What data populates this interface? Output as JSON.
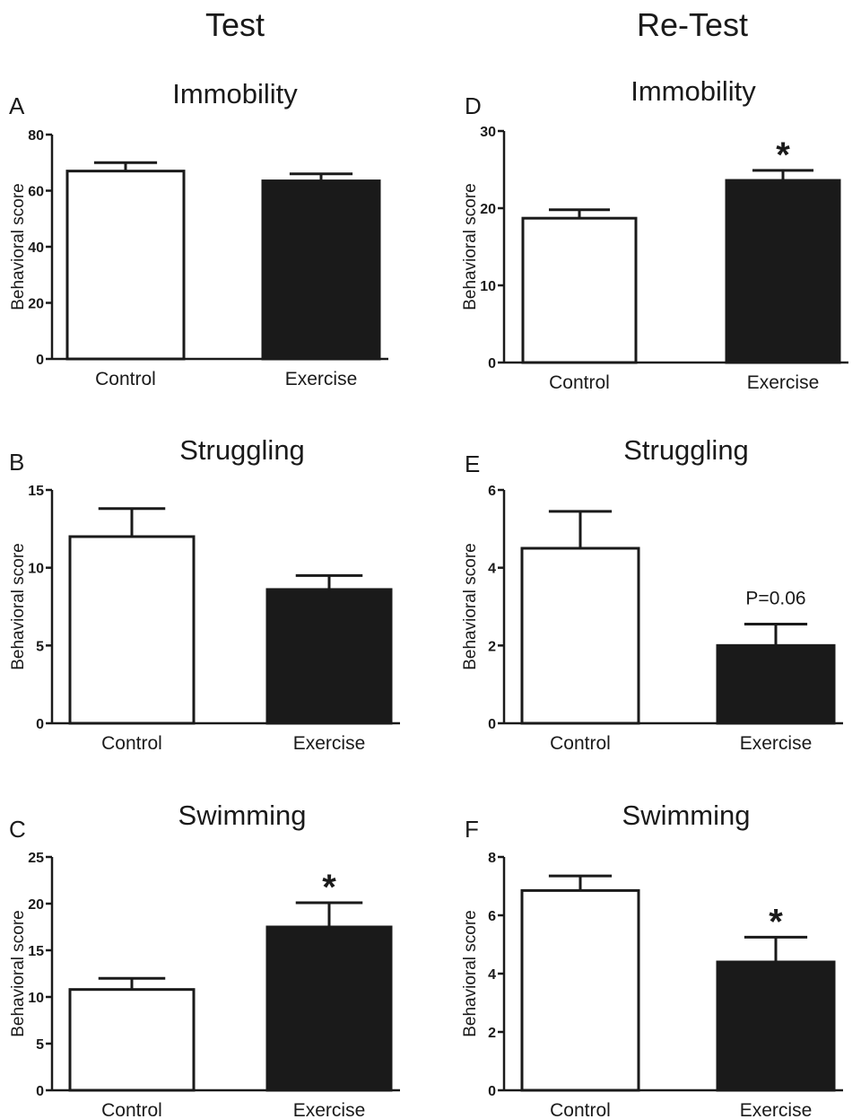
{
  "columns": [
    "Test",
    "Re-Test"
  ],
  "colors": {
    "control": "#ffffff",
    "exercise": "#1a1a1a",
    "axis": "#1a1a1a"
  },
  "chart_data": [
    {
      "panel": "A",
      "column": "Test",
      "type": "bar",
      "title": "Immobility",
      "ylabel": "Behavioral score",
      "categories": [
        "Control",
        "Exercise"
      ],
      "values": [
        67,
        63.5
      ],
      "errors": [
        3,
        2.5
      ],
      "ylim": [
        0,
        80
      ],
      "yticks": [
        0,
        20,
        40,
        60,
        80
      ],
      "annotations": [
        "",
        ""
      ],
      "grid": false
    },
    {
      "panel": "B",
      "column": "Test",
      "type": "bar",
      "title": "Struggling",
      "ylabel": "Behavioral score",
      "categories": [
        "Control",
        "Exercise"
      ],
      "values": [
        12,
        8.6
      ],
      "errors": [
        1.8,
        0.9
      ],
      "ylim": [
        0,
        15
      ],
      "yticks": [
        0,
        5,
        10,
        15
      ],
      "annotations": [
        "",
        ""
      ],
      "grid": false
    },
    {
      "panel": "C",
      "column": "Test",
      "type": "bar",
      "title": "Swimming",
      "ylabel": "Behavioral score",
      "categories": [
        "Control",
        "Exercise"
      ],
      "values": [
        10.8,
        17.5
      ],
      "errors": [
        1.2,
        2.6
      ],
      "ylim": [
        0,
        25
      ],
      "yticks": [
        0,
        5,
        10,
        15,
        20,
        25
      ],
      "annotations": [
        "",
        "*"
      ],
      "grid": false
    },
    {
      "panel": "D",
      "column": "Re-Test",
      "type": "bar",
      "title": "Immobility",
      "ylabel": "Behavioral score",
      "categories": [
        "Control",
        "Exercise"
      ],
      "values": [
        18.7,
        23.6
      ],
      "errors": [
        1.1,
        1.3
      ],
      "ylim": [
        0,
        30
      ],
      "yticks": [
        0,
        10,
        20,
        30
      ],
      "annotations": [
        "",
        "*"
      ],
      "grid": false
    },
    {
      "panel": "E",
      "column": "Re-Test",
      "type": "bar",
      "title": "Struggling",
      "ylabel": "Behavioral score",
      "categories": [
        "Control",
        "Exercise"
      ],
      "values": [
        4.5,
        2.0
      ],
      "errors": [
        0.95,
        0.55
      ],
      "ylim": [
        0,
        6
      ],
      "yticks": [
        0,
        2,
        4,
        6
      ],
      "annotations": [
        "",
        "P=0.06"
      ],
      "grid": false
    },
    {
      "panel": "F",
      "column": "Re-Test",
      "type": "bar",
      "title": "Swimming",
      "ylabel": "Behavioral score",
      "categories": [
        "Control",
        "Exercise"
      ],
      "values": [
        6.85,
        4.4
      ],
      "errors": [
        0.5,
        0.85
      ],
      "ylim": [
        0,
        8
      ],
      "yticks": [
        0,
        2,
        4,
        6,
        8
      ],
      "annotations": [
        "",
        "*"
      ],
      "grid": false
    }
  ]
}
